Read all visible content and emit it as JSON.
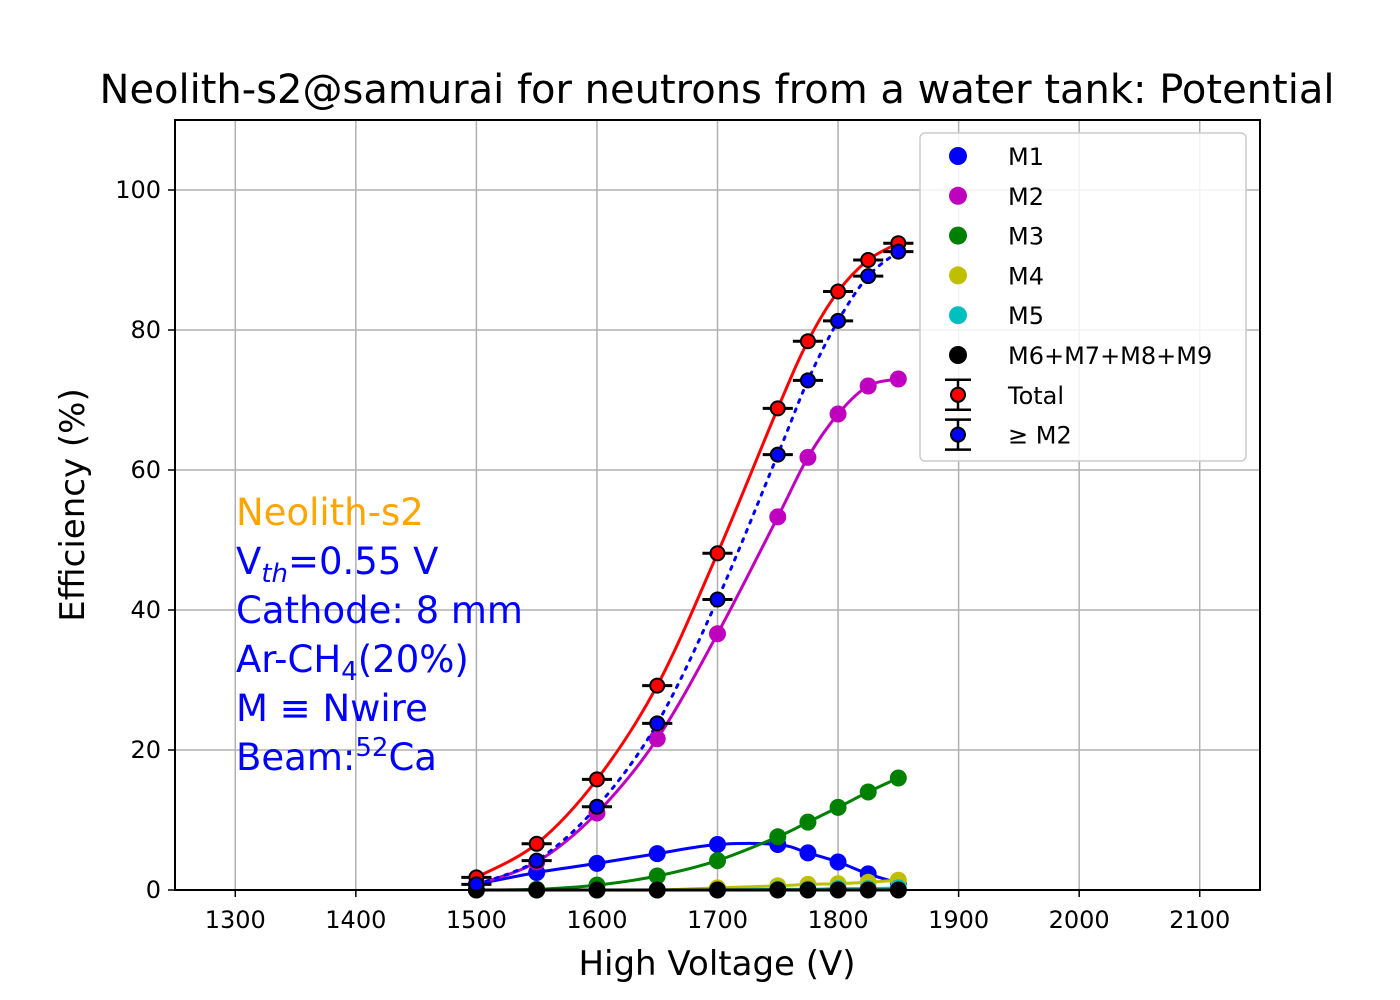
{
  "chart_data": {
    "type": "scatter",
    "title": "Neolith-s2@samurai for neutrons from a water tank: Potential",
    "xlabel": "High Voltage (V)",
    "ylabel": "Efficiency (%)",
    "xlim": [
      1250,
      2150
    ],
    "ylim": [
      0,
      110
    ],
    "xticks": [
      1300,
      1400,
      1500,
      1600,
      1700,
      1800,
      1900,
      2000,
      2100
    ],
    "yticks": [
      0,
      20,
      40,
      60,
      80,
      100
    ],
    "grid": true,
    "legend_position": "top-right",
    "x": [
      1500,
      1550,
      1600,
      1650,
      1700,
      1750,
      1775,
      1800,
      1825,
      1850
    ],
    "series": [
      {
        "name": "M1",
        "color": "#0000ff",
        "values": [
          0.8,
          2.5,
          3.8,
          5.2,
          6.5,
          6.5,
          5.3,
          4.0,
          2.3,
          1.0
        ],
        "line": "solid",
        "errorbars": false
      },
      {
        "name": "M2",
        "color": "#bf00bf",
        "values": [
          0.8,
          4.0,
          11.0,
          21.6,
          36.6,
          53.3,
          61.8,
          68.0,
          72.0,
          73.0
        ],
        "line": "solid",
        "errorbars": false
      },
      {
        "name": "M3",
        "color": "#008000",
        "values": [
          0.0,
          0.1,
          0.7,
          2.0,
          4.2,
          7.6,
          9.7,
          11.8,
          14.0,
          16.0
        ],
        "line": "solid",
        "errorbars": false
      },
      {
        "name": "M4",
        "color": "#bfbf00",
        "values": [
          0.0,
          0.0,
          0.0,
          0.0,
          0.3,
          0.6,
          0.8,
          0.9,
          1.1,
          1.4
        ],
        "line": "solid",
        "errorbars": false
      },
      {
        "name": "M5",
        "color": "#00bfbf",
        "values": [
          0.0,
          0.0,
          0.0,
          0.0,
          0.0,
          0.1,
          0.1,
          0.2,
          0.2,
          0.3
        ],
        "line": "solid",
        "errorbars": false
      },
      {
        "name": "M6+M7+M8+M9",
        "color": "#000000",
        "values": [
          0.0,
          0.0,
          0.0,
          0.0,
          0.0,
          0.0,
          0.0,
          0.0,
          0.0,
          0.0
        ],
        "line": "solid",
        "errorbars": false
      },
      {
        "name": "Total",
        "color": "#ff0000",
        "values": [
          1.8,
          6.6,
          15.8,
          29.2,
          48.1,
          68.8,
          78.4,
          85.5,
          90.0,
          92.4
        ],
        "line": "solid",
        "errorbars": true
      },
      {
        "name": "≥ M2",
        "color": "#0000ff",
        "values": [
          0.8,
          4.2,
          11.9,
          23.8,
          41.5,
          62.2,
          72.8,
          81.3,
          87.7,
          91.2
        ],
        "line": "dotted",
        "errorbars": true
      }
    ],
    "annotation": {
      "lines": [
        {
          "text": "Neolith-s2",
          "color": "#ffa500"
        },
        {
          "text": "Vth=0.55 V",
          "color": "#0000ff"
        },
        {
          "text": "Cathode: 8 mm",
          "color": "#0000ff"
        },
        {
          "text": "Ar-CH4(20%)",
          "color": "#0000ff"
        },
        {
          "text": "M ≡ Nwire",
          "color": "#0000ff"
        },
        {
          "text": "Beam:52Ca",
          "color": "#0000ff"
        }
      ]
    }
  }
}
